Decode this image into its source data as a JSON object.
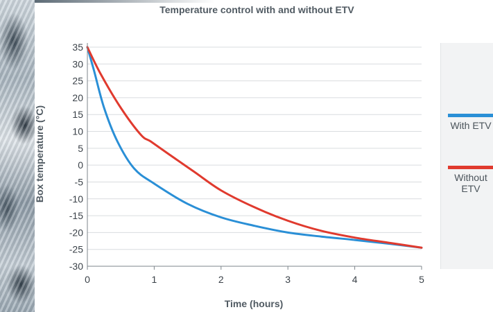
{
  "chart_data": {
    "type": "line",
    "title": "Temperature control with and without ETV",
    "xlabel": "Time (hours)",
    "ylabel": "Box temperature (°C)",
    "xlim": [
      0,
      5
    ],
    "ylim": [
      -30,
      35
    ],
    "xticks": [
      "0",
      "1",
      "2",
      "3",
      "4",
      "5"
    ],
    "yticks": [
      "35",
      "30",
      "25",
      "20",
      "15",
      "10",
      "5",
      "0",
      "-5",
      "-10",
      "-15",
      "-20",
      "-25",
      "-30"
    ],
    "grid": "horizontal",
    "legend_position": "right",
    "series": [
      {
        "name": "With ETV",
        "color": "#2a8fd6",
        "x": [
          0,
          0.1,
          0.25,
          0.45,
          0.7,
          1.0,
          1.5,
          2.0,
          2.5,
          3.0,
          3.5,
          4.0,
          4.5,
          5.0
        ],
        "y": [
          35,
          28,
          17,
          7,
          -1,
          -5.5,
          -11.5,
          -15.5,
          -18,
          -20,
          -21.2,
          -22.2,
          -23.3,
          -24.5
        ]
      },
      {
        "name": "Without\nETV",
        "color": "#e03a2e",
        "x": [
          0,
          0.2,
          0.5,
          0.8,
          0.95,
          1.2,
          1.6,
          2.0,
          2.5,
          3.0,
          3.5,
          4.0,
          4.5,
          5.0
        ],
        "y": [
          35,
          27,
          17,
          9,
          7,
          3.5,
          -2,
          -7.5,
          -12.5,
          -16.5,
          -19.5,
          -21.5,
          -23,
          -24.5
        ]
      }
    ]
  }
}
